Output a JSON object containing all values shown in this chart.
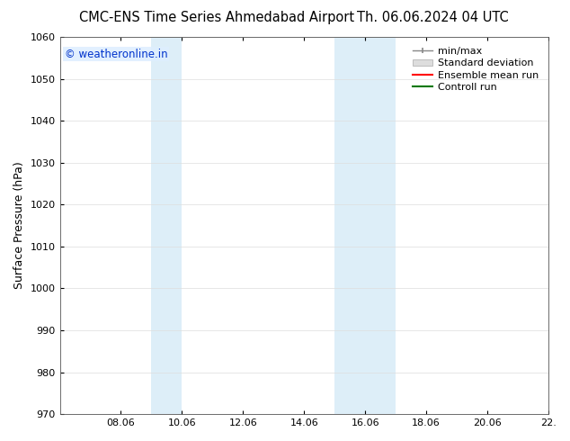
{
  "title_left": "CMC-ENS Time Series Ahmedabad Airport",
  "title_right": "Th. 06.06.2024 04 UTC",
  "ylabel": "Surface Pressure (hPa)",
  "ylim": [
    970,
    1060
  ],
  "yticks": [
    970,
    980,
    990,
    1000,
    1010,
    1020,
    1030,
    1040,
    1050,
    1060
  ],
  "xlim": [
    0,
    16
  ],
  "xtick_positions": [
    2,
    4,
    6,
    8,
    10,
    12,
    14,
    16
  ],
  "xtick_labels": [
    "08.06",
    "10.06",
    "12.06",
    "14.06",
    "16.06",
    "18.06",
    "20.06",
    "22."
  ],
  "shaded_bands": [
    {
      "x_start": 3,
      "x_end": 4,
      "color": "#ddeef8"
    },
    {
      "x_start": 9,
      "x_end": 11,
      "color": "#ddeef8"
    }
  ],
  "watermark_text": "© weatheronline.in",
  "watermark_color": "#0033cc",
  "watermark_bg": "#ddeeff",
  "legend_items": [
    {
      "label": "min/max",
      "color": "#999999",
      "style": "line_with_caps"
    },
    {
      "label": "Standard deviation",
      "color": "#cccccc",
      "style": "bar"
    },
    {
      "label": "Ensemble mean run",
      "color": "#ff0000",
      "style": "line"
    },
    {
      "label": "Controll run",
      "color": "#007700",
      "style": "line"
    }
  ],
  "background_color": "#ffffff",
  "plot_bg_color": "#ffffff",
  "grid_color": "#dddddd",
  "title_fontsize": 10.5,
  "axis_fontsize": 9,
  "tick_fontsize": 8,
  "legend_fontsize": 8,
  "watermark_fontsize": 8.5
}
